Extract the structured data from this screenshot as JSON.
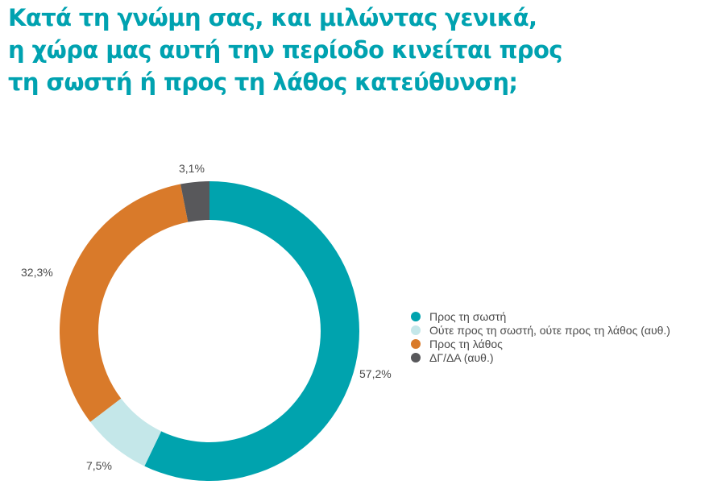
{
  "title": {
    "lines": [
      "Κατά τη γνώμη σας, και μιλώντας γενικά,",
      "η χώρα μας αυτή την περίοδο κινείται προς",
      "τη σωστή ή προς τη λάθος κατεύθυνση;"
    ]
  },
  "legend": {
    "items": [
      {
        "label": "Προς τη σωστή",
        "color": "#00A3AE"
      },
      {
        "label": "Ούτε προς τη σωστή, ούτε προς τη λάθος (αυθ.)",
        "color": "#C4E7E9"
      },
      {
        "label": "Προς τη λάθος",
        "color": "#D97A2A"
      },
      {
        "label": "ΔΓ/ΔΑ (αυθ.)",
        "color": "#58585B"
      }
    ]
  },
  "data_labels": [
    "57,2%",
    "7,5%",
    "32,3%",
    "3,1%"
  ],
  "chart_data": {
    "type": "pie",
    "subtype": "donut",
    "title": "Κατά τη γνώμη σας, και μιλώντας γενικά, η χώρα μας αυτή την περίοδο κινείται προς τη σωστή ή προς τη λάθος κατεύθυνση;",
    "categories": [
      "Προς τη σωστή",
      "Ούτε προς τη σωστή, ούτε προς τη λάθος (αυθ.)",
      "Προς τη λάθος",
      "ΔΓ/ΔΑ (αυθ.)"
    ],
    "values": [
      57.2,
      7.5,
      32.3,
      3.1
    ],
    "unit": "%",
    "colors": [
      "#00A3AE",
      "#C4E7E9",
      "#D97A2A",
      "#58585B"
    ],
    "start_angle": "12 o'clock",
    "direction": "clockwise",
    "legend_position": "right"
  }
}
